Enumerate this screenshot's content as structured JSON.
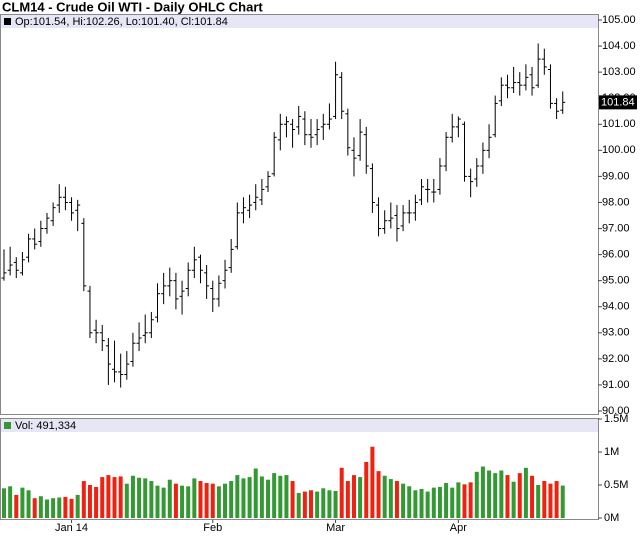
{
  "chart_data": {
    "type": "ohlc",
    "title": "CLM14 - Crude Oil WTI - Daily OHLC Chart",
    "info_label": "Op:101.54, Hi:102.26, Lo:101.40, Cl:101.84",
    "volume_label": "Vol: 491,334",
    "categories": [
      null,
      null,
      null,
      null,
      null,
      null,
      null,
      null,
      null,
      null,
      null,
      "Jan 14",
      null,
      null,
      null,
      null,
      null,
      null,
      null,
      null,
      null,
      null,
      null,
      null,
      null,
      null,
      null,
      null,
      null,
      null,
      null,
      null,
      null,
      null,
      "Feb",
      null,
      null,
      null,
      null,
      null,
      null,
      null,
      null,
      null,
      null,
      null,
      null,
      null,
      null,
      null,
      null,
      null,
      null,
      null,
      "Mar",
      null,
      null,
      null,
      null,
      null,
      null,
      null,
      null,
      null,
      null,
      null,
      null,
      null,
      null,
      null,
      null,
      null,
      null,
      null,
      "Apr",
      null,
      null,
      null,
      null,
      null,
      null,
      null,
      null,
      null,
      null,
      null,
      null,
      null,
      null,
      null,
      null,
      null
    ],
    "open": [
      95.1,
      95.4,
      95.7,
      95.3,
      95.9,
      96.6,
      96.5,
      97.0,
      97.3,
      97.9,
      98.2,
      98.0,
      97.7,
      97.2,
      94.6,
      93.1,
      93.0,
      92.5,
      91.6,
      91.5,
      91.4,
      91.9,
      92.6,
      92.9,
      93.0,
      93.6,
      94.5,
      94.8,
      95.0,
      94.4,
      94.7,
      95.4,
      95.9,
      95.3,
      94.7,
      94.3,
      95.0,
      95.5,
      96.3,
      97.6,
      97.7,
      98.0,
      98.1,
      98.6,
      99.1,
      100.4,
      101.0,
      101.0,
      100.9,
      101.2,
      100.6,
      100.6,
      100.9,
      101.0,
      101.3,
      102.8,
      101.4,
      100.0,
      99.8,
      100.6,
      99.3,
      97.9,
      97.0,
      97.3,
      97.5,
      97.1,
      97.6,
      97.6,
      98.1,
      98.5,
      98.4,
      98.5,
      99.4,
      100.5,
      100.9,
      101.0,
      99.0,
      98.9,
      99.4,
      100.0,
      100.6,
      101.9,
      102.5,
      102.4,
      102.6,
      102.5,
      102.9,
      102.5,
      103.5,
      103.1,
      101.8,
      101.54
    ],
    "high": [
      96.2,
      96.3,
      95.9,
      96.1,
      96.8,
      97.0,
      97.3,
      97.6,
      98.0,
      98.7,
      98.6,
      98.2,
      98.1,
      97.4,
      94.8,
      93.5,
      93.3,
      92.8,
      92.7,
      92.2,
      92.3,
      93.0,
      93.4,
      93.7,
      93.8,
      94.9,
      95.3,
      95.5,
      95.3,
      95.0,
      95.7,
      96.3,
      96.0,
      95.6,
      95.0,
      95.2,
      95.8,
      96.6,
      98.0,
      98.2,
      98.3,
      98.7,
      98.9,
      99.2,
      100.7,
      101.4,
      101.3,
      101.2,
      101.7,
      101.5,
      101.2,
      101.2,
      101.4,
      101.8,
      103.4,
      103.0,
      101.6,
      100.5,
      101.2,
      100.9,
      99.5,
      98.2,
      97.7,
      98.0,
      97.9,
      97.9,
      98.1,
      98.3,
      98.9,
      98.9,
      98.9,
      99.7,
      100.7,
      101.4,
      101.3,
      101.1,
      99.3,
      99.7,
      100.3,
      101.0,
      102.1,
      102.8,
      102.9,
      103.2,
      103.0,
      103.3,
      103.2,
      104.1,
      103.9,
      103.3,
      102.0,
      102.26
    ],
    "low": [
      95.0,
      95.2,
      95.1,
      95.2,
      95.7,
      96.2,
      96.3,
      96.8,
      97.1,
      97.6,
      97.7,
      97.3,
      96.9,
      94.6,
      92.8,
      92.6,
      92.3,
      91.0,
      91.1,
      90.9,
      91.2,
      91.7,
      92.3,
      92.6,
      92.8,
      93.4,
      94.1,
      94.4,
      93.9,
      93.7,
      94.4,
      95.1,
      94.9,
      94.3,
      93.8,
      94.0,
      94.7,
      95.3,
      96.2,
      97.2,
      97.4,
      97.7,
      97.9,
      98.4,
      99.0,
      100.0,
      100.5,
      100.1,
      100.6,
      100.2,
      100.1,
      100.2,
      100.4,
      100.8,
      101.2,
      101.2,
      99.8,
      99.0,
      99.6,
      99.1,
      97.6,
      96.7,
      96.8,
      97.0,
      96.5,
      96.9,
      97.2,
      97.3,
      97.9,
      98.0,
      98.0,
      98.3,
      99.2,
      100.3,
      100.5,
      98.8,
      98.2,
      98.6,
      99.1,
      99.7,
      100.5,
      101.7,
      102.0,
      102.2,
      102.1,
      102.3,
      102.1,
      102.4,
      102.9,
      101.6,
      101.2,
      101.4
    ],
    "close": [
      95.3,
      95.6,
      95.4,
      95.8,
      96.6,
      96.4,
      97.0,
      97.4,
      97.8,
      98.2,
      98.0,
      97.6,
      97.9,
      94.8,
      93.0,
      93.0,
      92.7,
      91.8,
      91.5,
      91.4,
      91.8,
      92.6,
      92.8,
      93.0,
      93.5,
      94.5,
      94.8,
      95.0,
      94.3,
      94.6,
      95.4,
      95.8,
      95.4,
      94.8,
      94.3,
      94.9,
      95.4,
      96.2,
      97.6,
      97.8,
      97.9,
      98.2,
      98.5,
      99.0,
      100.5,
      101.0,
      101.1,
      100.8,
      101.3,
      100.6,
      100.5,
      100.8,
      101.0,
      101.2,
      102.9,
      101.5,
      100.1,
      99.7,
      100.7,
      99.4,
      98.0,
      97.0,
      97.3,
      97.4,
      97.0,
      97.6,
      97.6,
      98.0,
      98.6,
      98.5,
      98.4,
      99.4,
      100.5,
      100.9,
      101.2,
      99.0,
      98.8,
      99.4,
      100.0,
      100.5,
      101.8,
      102.5,
      102.4,
      102.6,
      102.5,
      102.8,
      102.4,
      103.5,
      103.2,
      101.8,
      101.5,
      101.84
    ],
    "volume": [
      450000,
      480000,
      350000,
      460000,
      420000,
      300000,
      330000,
      280000,
      300000,
      310000,
      320000,
      290000,
      350000,
      560000,
      500000,
      470000,
      620000,
      650000,
      620000,
      630000,
      520000,
      640000,
      610000,
      600000,
      560000,
      490000,
      460000,
      580000,
      520000,
      490000,
      480000,
      600000,
      560000,
      530000,
      520000,
      480000,
      520000,
      560000,
      650000,
      600000,
      620000,
      750000,
      630000,
      580000,
      680000,
      640000,
      650000,
      560000,
      380000,
      400000,
      420000,
      400000,
      450000,
      420000,
      410000,
      760000,
      560000,
      650000,
      620000,
      850000,
      1080000,
      710000,
      640000,
      590000,
      560000,
      520000,
      480000,
      420000,
      440000,
      400000,
      460000,
      470000,
      530000,
      460000,
      540000,
      510000,
      540000,
      700000,
      780000,
      720000,
      680000,
      720000,
      650000,
      550000,
      680000,
      760000,
      640000,
      500000,
      560000,
      520000,
      560000,
      491334
    ],
    "up_color": "#339933",
    "down_color": "#ee2211",
    "bar_color": "#000000",
    "ylim": [
      90,
      105
    ],
    "yticks": [
      {
        "value": 90,
        "label": "90.00"
      },
      {
        "value": 91,
        "label": "91.00"
      },
      {
        "value": 92,
        "label": "92.00"
      },
      {
        "value": 93,
        "label": "93.00"
      },
      {
        "value": 94,
        "label": "94.00"
      },
      {
        "value": 95,
        "label": "95.00"
      },
      {
        "value": 96,
        "label": "96.00"
      },
      {
        "value": 97,
        "label": "97.00"
      },
      {
        "value": 98,
        "label": "98.00"
      },
      {
        "value": 99,
        "label": "99.00"
      },
      {
        "value": 100,
        "label": "100.00"
      },
      {
        "value": 101,
        "label": "101.00"
      },
      {
        "value": 102,
        "label": "102.00"
      },
      {
        "value": 103,
        "label": "103.00"
      },
      {
        "value": 104,
        "label": "104.00"
      },
      {
        "value": 105,
        "label": "105.00"
      }
    ],
    "y2lim": [
      0,
      1500000
    ],
    "y2ticks": [
      {
        "value": 0,
        "label": "0M"
      },
      {
        "value": 500000,
        "label": "0.5M"
      },
      {
        "value": 1000000,
        "label": "1M"
      },
      {
        "value": 1500000,
        "label": "1.5M"
      }
    ]
  }
}
